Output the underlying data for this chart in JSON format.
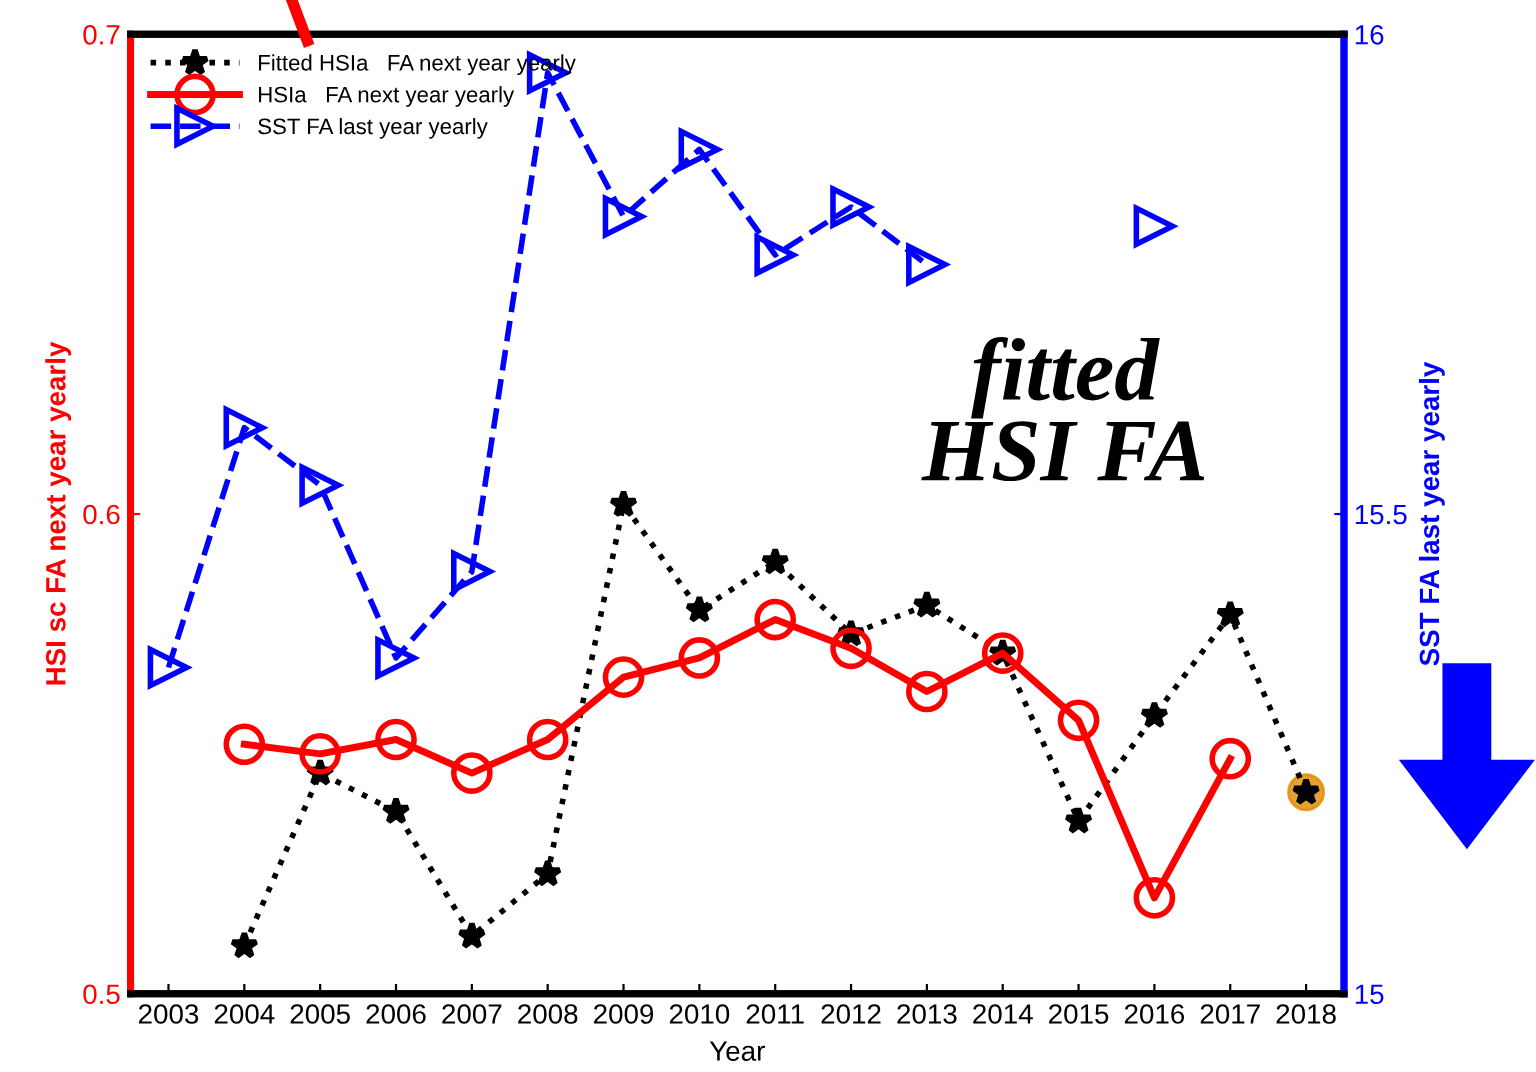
{
  "chart_data": {
    "type": "line",
    "xlabel": "Year",
    "ylabel": "HSI sc FA next year yearly",
    "y2label": "SST FA last year yearly",
    "x": [
      2003,
      2004,
      2005,
      2006,
      2007,
      2008,
      2009,
      2010,
      2011,
      2012,
      2013,
      2014,
      2015,
      2016,
      2017,
      2018
    ],
    "xlim": [
      2002.5,
      2018.5
    ],
    "xticks": [
      2003,
      2004,
      2005,
      2006,
      2007,
      2008,
      2009,
      2010,
      2011,
      2012,
      2013,
      2014,
      2015,
      2016,
      2017,
      2018
    ],
    "ylim": [
      0.5,
      0.7
    ],
    "yticks": [
      0.5,
      0.6,
      0.7
    ],
    "y2lim": [
      15,
      16
    ],
    "y2ticks": [
      15,
      15.5,
      16
    ],
    "series": [
      {
        "name": "Fitted HSIa   FA next year yearly",
        "color": "#000000",
        "marker": "star",
        "line_style": "dotted",
        "values": [
          null,
          0.51,
          0.546,
          0.538,
          0.512,
          0.525,
          0.602,
          0.58,
          0.59,
          0.575,
          0.581,
          0.571,
          0.536,
          0.558,
          0.579,
          0.542
        ]
      },
      {
        "name": "HSIa   FA next year yearly",
        "color": "#ff0000",
        "marker": "circle",
        "line_style": "solid",
        "values": [
          null,
          0.552,
          0.55,
          0.553,
          0.546,
          0.553,
          0.566,
          0.57,
          0.578,
          0.572,
          0.563,
          0.571,
          0.557,
          0.52,
          0.549,
          null
        ]
      },
      {
        "name": "SST FA last year yearly",
        "color": "#0000ff",
        "marker": "triangle",
        "line_style": "dashed",
        "axis": "y2",
        "values": [
          15.34,
          15.59,
          15.53,
          15.35,
          15.44,
          15.96,
          15.81,
          15.88,
          15.77,
          15.82,
          15.76,
          null,
          null,
          15.8,
          null,
          null
        ]
      },
      {
        "type": "scatter",
        "color": "#e08a00",
        "marker": "circle",
        "x": [
          2018
        ],
        "values": [
          0.542
        ]
      }
    ],
    "annotations": [
      "fitted\nHSI FA"
    ],
    "grid": false,
    "legend": "top left"
  }
}
